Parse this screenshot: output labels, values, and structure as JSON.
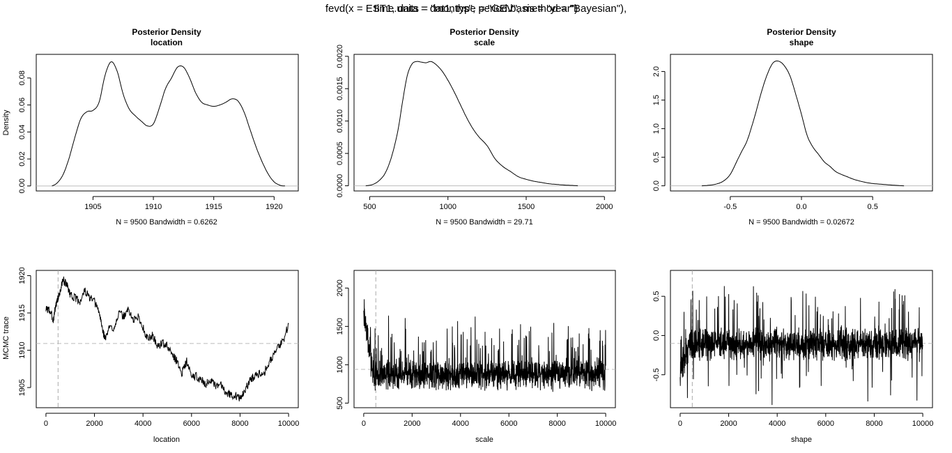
{
  "suptitle_lines": [
    "fevd(x = EST1, data = dat1, type = \"GEV\", method = \"Bayesian\"),",
    "time.units = \"months\", period.basis = \"year\")"
  ],
  "chart_data": [
    {
      "id": "density-location",
      "type": "line",
      "title": "Posterior Density",
      "subtitle": "location",
      "xlabel": "",
      "ylabel": "Density",
      "sub_label": "N = 9500   Bandwidth = 0.6262",
      "xlim": [
        1900.3,
        1922.0
      ],
      "ylim": [
        -0.0037,
        0.0975
      ],
      "xticks": [
        1905,
        1910,
        1915,
        1920
      ],
      "yticks": [
        0.0,
        0.02,
        0.04,
        0.06,
        0.08
      ],
      "ytick_labels": [
        "0.00",
        "0.02",
        "0.04",
        "0.06",
        "0.08"
      ],
      "hline": 0,
      "x": [
        1901.6,
        1902.0,
        1902.5,
        1903.0,
        1903.5,
        1904.0,
        1904.5,
        1905.0,
        1905.5,
        1906.0,
        1906.5,
        1907.0,
        1907.5,
        1908.0,
        1908.5,
        1909.0,
        1909.5,
        1910.0,
        1910.5,
        1911.0,
        1911.5,
        1912.0,
        1912.5,
        1913.0,
        1913.5,
        1914.0,
        1914.5,
        1915.0,
        1915.5,
        1916.0,
        1916.5,
        1917.0,
        1917.5,
        1918.0,
        1918.5,
        1919.0,
        1919.5,
        1920.0,
        1920.5,
        1920.9
      ],
      "y": [
        0.0,
        0.002,
        0.008,
        0.02,
        0.036,
        0.05,
        0.055,
        0.056,
        0.062,
        0.082,
        0.092,
        0.085,
        0.068,
        0.057,
        0.052,
        0.048,
        0.0445,
        0.046,
        0.058,
        0.072,
        0.08,
        0.088,
        0.088,
        0.08,
        0.069,
        0.062,
        0.06,
        0.059,
        0.06,
        0.062,
        0.0645,
        0.063,
        0.055,
        0.042,
        0.029,
        0.018,
        0.009,
        0.003,
        0.0005,
        0.0
      ]
    },
    {
      "id": "density-scale",
      "type": "line",
      "title": "Posterior Density",
      "subtitle": "scale",
      "xlabel": "",
      "ylabel": "",
      "sub_label": "N = 9500   Bandwidth = 29.71",
      "xlim": [
        400,
        2070
      ],
      "ylim": [
        -8e-05,
        0.00203
      ],
      "xticks": [
        500,
        1000,
        1500,
        2000
      ],
      "yticks": [
        0.0,
        0.0005,
        0.001,
        0.0015,
        0.002
      ],
      "ytick_labels": [
        "0.0000",
        "0.0005",
        "0.0010",
        "0.0015",
        "0.0020"
      ],
      "hline": 0,
      "x": [
        475,
        520,
        560,
        600,
        640,
        680,
        710,
        740,
        770,
        800,
        830,
        860,
        890,
        920,
        960,
        1000,
        1040,
        1080,
        1120,
        1160,
        1200,
        1250,
        1300,
        1350,
        1400,
        1450,
        1500,
        1550,
        1600,
        1650,
        1700,
        1750,
        1800,
        1830
      ],
      "y": [
        0.0,
        2e-05,
        8e-05,
        0.0002,
        0.00045,
        0.00085,
        0.0013,
        0.0017,
        0.00188,
        0.00192,
        0.00191,
        0.0019,
        0.00192,
        0.00188,
        0.00178,
        0.00163,
        0.00145,
        0.00125,
        0.00105,
        0.00088,
        0.00075,
        0.00062,
        0.00042,
        0.0003,
        0.00022,
        0.00014,
        0.0001,
        7e-05,
        5e-05,
        3e-05,
        2e-05,
        1e-05,
        5e-06,
        0.0
      ]
    },
    {
      "id": "density-shape",
      "type": "line",
      "title": "Posterior Density",
      "subtitle": "shape",
      "xlabel": "",
      "ylabel": "",
      "sub_label": "N = 9500   Bandwidth = 0.02672",
      "xlim": [
        -0.92,
        0.92
      ],
      "ylim": [
        -0.09,
        2.3
      ],
      "xticks": [
        -0.5,
        0.0,
        0.5
      ],
      "yticks": [
        0.0,
        0.5,
        1.0,
        1.5,
        2.0
      ],
      "ytick_labels": [
        "0.0",
        "0.5",
        "1.0",
        "1.5",
        "2.0"
      ],
      "xtick_labels": [
        "-0.5",
        "0.0",
        "0.5"
      ],
      "hline": 0,
      "x": [
        -0.7,
        -0.65,
        -0.6,
        -0.55,
        -0.5,
        -0.45,
        -0.42,
        -0.38,
        -0.33,
        -0.28,
        -0.24,
        -0.2,
        -0.16,
        -0.12,
        -0.08,
        -0.04,
        0.0,
        0.04,
        0.08,
        0.12,
        0.16,
        0.2,
        0.24,
        0.28,
        0.32,
        0.36,
        0.4,
        0.45,
        0.5,
        0.55,
        0.6,
        0.65,
        0.72
      ],
      "y": [
        0.0,
        0.01,
        0.03,
        0.08,
        0.2,
        0.45,
        0.6,
        0.8,
        1.2,
        1.65,
        1.95,
        2.15,
        2.18,
        2.1,
        1.92,
        1.6,
        1.25,
        0.88,
        0.68,
        0.55,
        0.42,
        0.34,
        0.25,
        0.2,
        0.16,
        0.12,
        0.09,
        0.06,
        0.04,
        0.03,
        0.02,
        0.01,
        0.0
      ]
    },
    {
      "id": "trace-location",
      "type": "line",
      "title": "",
      "xlabel": "location",
      "ylabel": "MCMC trace",
      "xlim": [
        -400,
        10400
      ],
      "ylim": [
        1902.3,
        1920.7
      ],
      "xticks": [
        0,
        2000,
        4000,
        6000,
        8000,
        10000
      ],
      "yticks": [
        1905,
        1910,
        1915,
        1920
      ],
      "vline": 500,
      "hline": 1910.9,
      "x": [
        0,
        100,
        200,
        300,
        400,
        500,
        600,
        700,
        800,
        900,
        1000,
        1200,
        1400,
        1600,
        1800,
        2000,
        2200,
        2350,
        2450,
        2600,
        2800,
        3000,
        3200,
        3400,
        3600,
        3800,
        4000,
        4200,
        4400,
        4600,
        4800,
        5000,
        5200,
        5400,
        5600,
        5800,
        6000,
        6200,
        6400,
        6600,
        6800,
        7000,
        7200,
        7400,
        7600,
        7800,
        8000,
        8200,
        8400,
        8600,
        8800,
        9000,
        9200,
        9400,
        9600,
        9800,
        10000
      ],
      "y": [
        1915.5,
        1915.5,
        1915.0,
        1914.0,
        1916.0,
        1917.0,
        1918.0,
        1919.5,
        1919.0,
        1918.5,
        1917.5,
        1917.0,
        1916.5,
        1918.0,
        1917.0,
        1916.5,
        1915.0,
        1912.5,
        1911.5,
        1913.0,
        1913.0,
        1915.0,
        1914.5,
        1915.5,
        1914.0,
        1914.5,
        1913.0,
        1911.5,
        1912.0,
        1910.5,
        1911.0,
        1910.5,
        1909.5,
        1908.5,
        1907.0,
        1908.5,
        1906.5,
        1906.5,
        1906.0,
        1905.5,
        1906.0,
        1905.0,
        1905.5,
        1904.5,
        1904.0,
        1904.0,
        1903.5,
        1904.5,
        1906.0,
        1906.5,
        1907.0,
        1907.0,
        1908.5,
        1909.5,
        1910.5,
        1911.5,
        1913.5
      ]
    },
    {
      "id": "trace-scale",
      "type": "line",
      "title": "",
      "xlabel": "scale",
      "ylabel": "",
      "xlim": [
        -400,
        10400
      ],
      "ylim": [
        440,
        2230
      ],
      "xticks": [
        0,
        2000,
        4000,
        6000,
        8000,
        10000
      ],
      "yticks": [
        500,
        1000,
        1500,
        2000
      ],
      "vline": 500,
      "hline": 940,
      "center": 870,
      "spread": 130,
      "seed": 7
    },
    {
      "id": "trace-shape",
      "type": "line",
      "title": "",
      "xlabel": "shape",
      "ylabel": "",
      "xlim": [
        -400,
        10400
      ],
      "ylim": [
        -0.92,
        0.83
      ],
      "xticks": [
        0,
        2000,
        4000,
        6000,
        8000,
        10000
      ],
      "yticks": [
        -0.5,
        0.0,
        0.5
      ],
      "ytick_labels": [
        "-0.5",
        "0.0",
        "0.5"
      ],
      "vline": 500,
      "hline": -0.1,
      "center": -0.11,
      "spread": 0.13,
      "seed": 13
    }
  ]
}
